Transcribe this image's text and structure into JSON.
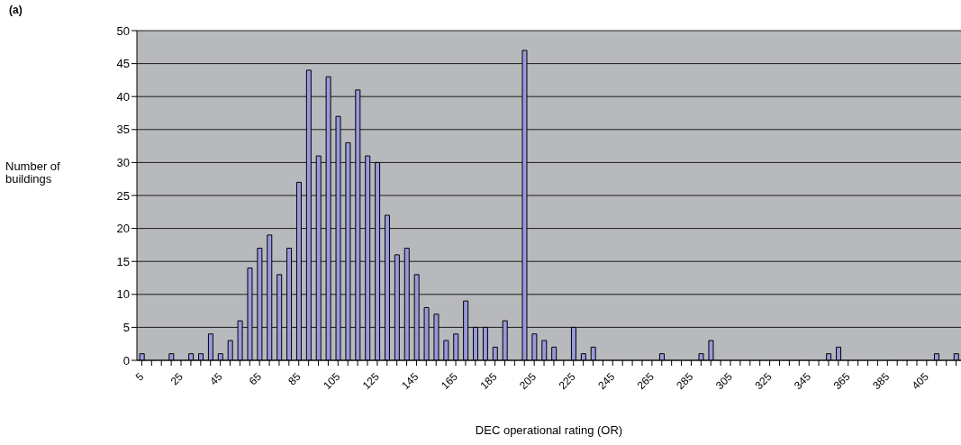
{
  "chart_data": {
    "type": "bar",
    "annotations": [
      "(a)"
    ],
    "xlabel": "DEC operational rating (OR)",
    "ylabel": "Number of buildings",
    "categories": [
      "5",
      null,
      null,
      null,
      "25",
      null,
      null,
      null,
      "45",
      null,
      null,
      null,
      "65",
      null,
      null,
      null,
      "85",
      null,
      null,
      null,
      "105",
      null,
      null,
      null,
      "125",
      null,
      null,
      null,
      "145",
      null,
      null,
      null,
      "165",
      null,
      null,
      null,
      "185",
      null,
      null,
      null,
      "205",
      null,
      null,
      null,
      "225",
      null,
      null,
      null,
      "245",
      null,
      null,
      null,
      "265",
      null,
      null,
      null,
      "285",
      null,
      null,
      null,
      "305",
      null,
      null,
      null,
      "325",
      null,
      null,
      null,
      "345",
      null,
      null,
      null,
      "365",
      null,
      null,
      null,
      "385",
      null,
      null,
      null,
      "405",
      null,
      null,
      null
    ],
    "values": [
      1,
      0,
      0,
      1,
      0,
      1,
      1,
      4,
      1,
      3,
      6,
      14,
      17,
      19,
      13,
      17,
      27,
      44,
      31,
      43,
      37,
      33,
      41,
      31,
      30,
      22,
      16,
      17,
      13,
      8,
      7,
      3,
      4,
      9,
      5,
      5,
      2,
      6,
      0,
      47,
      4,
      3,
      2,
      0,
      5,
      1,
      2,
      0,
      0,
      0,
      0,
      0,
      0,
      1,
      0,
      0,
      0,
      1,
      3,
      0,
      0,
      0,
      0,
      0,
      0,
      0,
      0,
      0,
      0,
      0,
      1,
      2,
      0,
      0,
      0,
      0,
      0,
      0,
      0,
      0,
      0,
      1,
      0,
      1
    ],
    "color": "#9999dd",
    "ylim": [
      0,
      50
    ],
    "yticks": [
      0,
      5,
      10,
      15,
      20,
      25,
      30,
      35,
      40,
      45,
      50
    ],
    "grid": "y"
  }
}
